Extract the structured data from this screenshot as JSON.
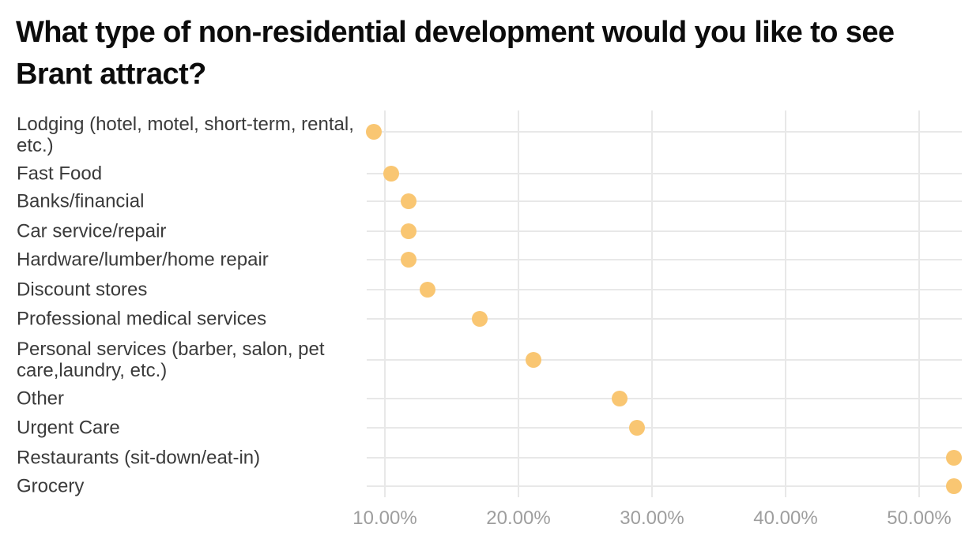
{
  "chart_data": {
    "type": "scatter",
    "variant": "horizontal-dot-plot",
    "title": "What type of non-residential development would you like to see Brant attract?",
    "categories": [
      "Lodging (hotel, motel, short-term, rental, etc.)",
      "Fast Food",
      "Banks/financial",
      "Car service/repair",
      "Hardware/lumber/home repair",
      "Discount stores",
      "Professional medical services",
      "Personal services (barber, salon, pet care,laundry, etc.)",
      "Other",
      "Urgent Care",
      "Restaurants (sit-down/eat-in)",
      "Grocery"
    ],
    "values": [
      9.2,
      10.5,
      11.8,
      11.8,
      11.8,
      13.2,
      17.1,
      21.1,
      27.6,
      28.9,
      52.6,
      52.6
    ],
    "value_unit": "%",
    "x_ticks": [
      {
        "value": 10,
        "label": "10.00%"
      },
      {
        "value": 20,
        "label": "20.00%"
      },
      {
        "value": 30,
        "label": "30.00%"
      },
      {
        "value": 40,
        "label": "40.00%"
      },
      {
        "value": 50,
        "label": "50.00%"
      }
    ],
    "xlim": [
      8.3,
      53.3
    ],
    "grid": true,
    "legend": "none",
    "colors": {
      "dot": "#f9c672",
      "gridline": "#e8e8e8",
      "tick_label": "#9e9e9e",
      "category_label": "#3a3a3a",
      "title": "#0c0c0c"
    }
  }
}
